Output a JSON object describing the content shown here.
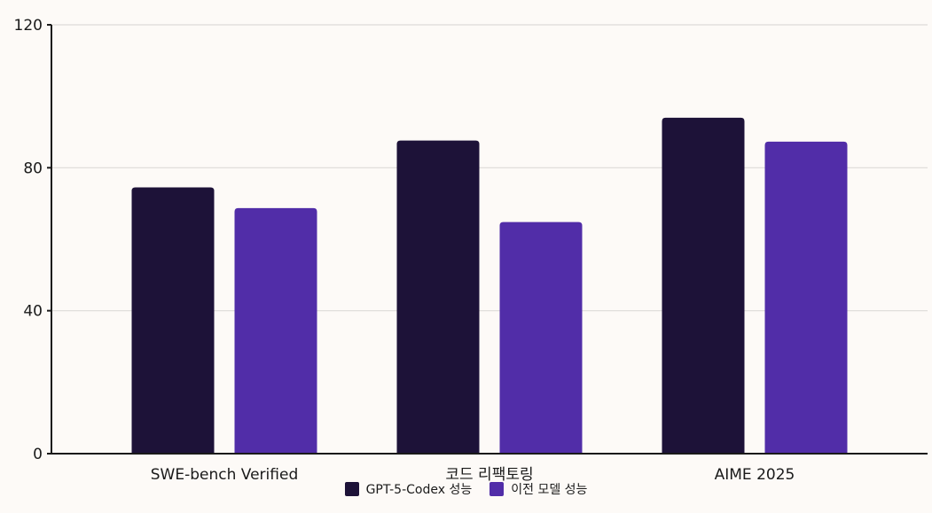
{
  "chart_data": {
    "type": "bar",
    "categories": [
      "SWE-bench Verified",
      "코드 리팩토링",
      "AIME 2025"
    ],
    "series": [
      {
        "name": "GPT-5-Codex 성능",
        "values": [
          74.5,
          87.6,
          94.0
        ],
        "color": "#1D1238"
      },
      {
        "name": "이전 모델 성능",
        "values": [
          68.7,
          64.8,
          87.3
        ],
        "color": "#512DA8"
      }
    ],
    "ylim": [
      0,
      120
    ],
    "yticks": [
      0,
      40,
      80,
      120
    ],
    "grid": true,
    "legend_position": "bottom"
  }
}
